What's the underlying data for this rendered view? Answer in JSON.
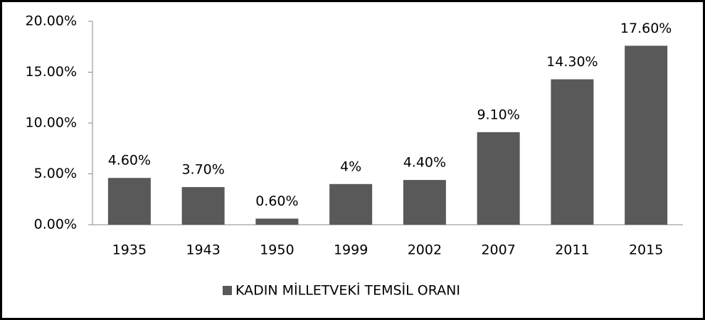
{
  "chart_data": {
    "type": "bar",
    "categories": [
      "1935",
      "1943",
      "1950",
      "1999",
      "2002",
      "2007",
      "2011",
      "2015"
    ],
    "series": [
      {
        "name": "KADIN MİLLETVEKİ TEMSİL ORANI",
        "color": "#595959",
        "values": [
          4.6,
          3.7,
          0.6,
          4,
          4.4,
          9.1,
          14.3,
          17.6
        ],
        "value_labels": [
          "4.60%",
          "3.70%",
          "0.60%",
          "4%",
          "4.40%",
          "9.10%",
          "14.30%",
          "17.60%"
        ]
      }
    ],
    "ylim": [
      0,
      20
    ],
    "yticks": [
      {
        "value": 0,
        "label": "0.00%"
      },
      {
        "value": 5,
        "label": "5.00%"
      },
      {
        "value": 10,
        "label": "10.00%"
      },
      {
        "value": 15,
        "label": "15.00%"
      },
      {
        "value": 20,
        "label": "20.00%"
      }
    ],
    "grid": false,
    "legend": "bottom"
  }
}
